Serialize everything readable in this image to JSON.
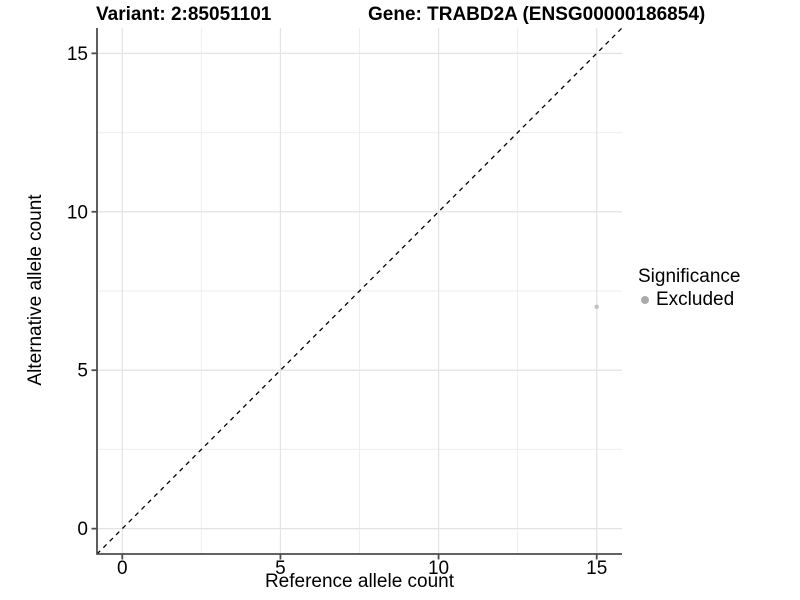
{
  "chart_data": {
    "type": "scatter",
    "title_variant": "Variant: 2:85051101",
    "title_gene": "Gene: TRABD2A (ENSG00000186854)",
    "xlabel": "Reference allele count",
    "ylabel": "Alternative allele count",
    "xlim": [
      -0.8,
      15.8
    ],
    "ylim": [
      -0.8,
      15.8
    ],
    "xticks": [
      0,
      5,
      10,
      15
    ],
    "yticks": [
      0,
      5,
      10,
      15
    ],
    "xminor": [
      2.5,
      7.5,
      12.5
    ],
    "yminor": [
      2.5,
      7.5,
      12.5
    ],
    "grid": "major+minor",
    "identity_line": {
      "slope": 1,
      "intercept": 0,
      "linetype": "dashed",
      "color": "#000000"
    },
    "series": [
      {
        "name": "Excluded",
        "color": "#c2c2c2",
        "point_radius": 2.2,
        "points": [
          {
            "x": 15,
            "y": 7
          }
        ]
      }
    ],
    "legend": {
      "title": "Significance",
      "position": "right",
      "items": [
        {
          "label": "Excluded",
          "color": "#aaaaaa"
        }
      ]
    },
    "style": {
      "background": "#ffffff",
      "grid_major_color": "#e3e3e3",
      "grid_minor_color": "#eeeeee",
      "axis_line_color": "#4d4d4d",
      "tick_label_color": "#000000"
    }
  }
}
